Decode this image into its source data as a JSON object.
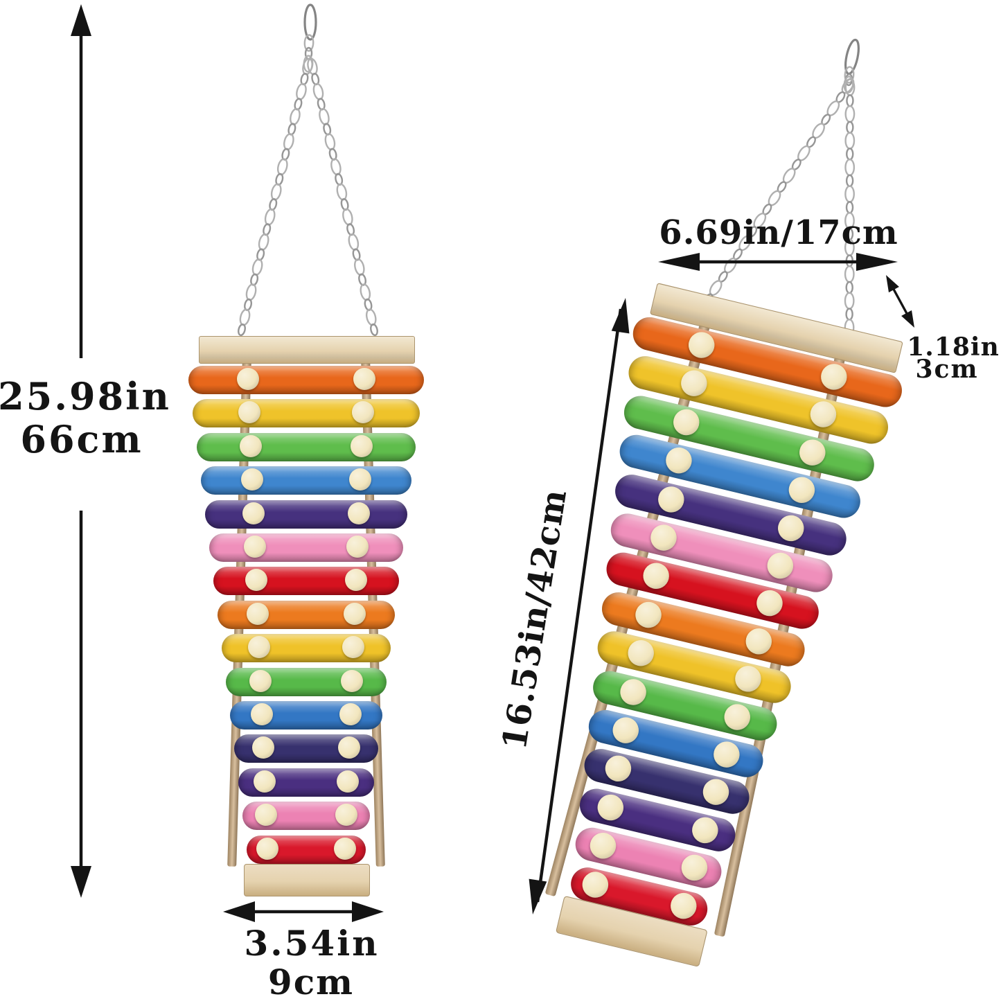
{
  "dimensions": {
    "height_in": "25.98in",
    "height_cm": "66cm",
    "width_in": "3.54in",
    "width_cm": "9cm",
    "top_width": "6.69in/17cm",
    "diagonal": "16.53in/42cm",
    "depth_in": "1.18in",
    "depth_cm": "3cm"
  },
  "xylophone": {
    "bar_count": 15,
    "views": [
      "front-hanging",
      "angled-hanging"
    ],
    "bars": [
      {
        "name": "orange",
        "hex": "#E8671B"
      },
      {
        "name": "yellow",
        "hex": "#EFC32A"
      },
      {
        "name": "green",
        "hex": "#5FBD4C"
      },
      {
        "name": "blue",
        "hex": "#3F86CE"
      },
      {
        "name": "dark-purple",
        "hex": "#46317E"
      },
      {
        "name": "pink",
        "hex": "#EF8FBB"
      },
      {
        "name": "red",
        "hex": "#D6121F"
      },
      {
        "name": "orange",
        "hex": "#EC7A1F"
      },
      {
        "name": "yellow",
        "hex": "#EFC229"
      },
      {
        "name": "green",
        "hex": "#57B949"
      },
      {
        "name": "blue",
        "hex": "#3377C4"
      },
      {
        "name": "navy",
        "hex": "#37316E"
      },
      {
        "name": "purple",
        "hex": "#4A2F80"
      },
      {
        "name": "pink",
        "hex": "#EC82B3"
      },
      {
        "name": "red",
        "hex": "#D9182B"
      }
    ],
    "knob_color": "#F2E6BE",
    "wood_light": "#F2E8D2",
    "wood_mid": "#E5D2AE",
    "wood_dark": "#C9AE80",
    "rail_color": "#CBA97E",
    "chain_color": "#B0B0B0",
    "arrow_color": "#141414"
  }
}
